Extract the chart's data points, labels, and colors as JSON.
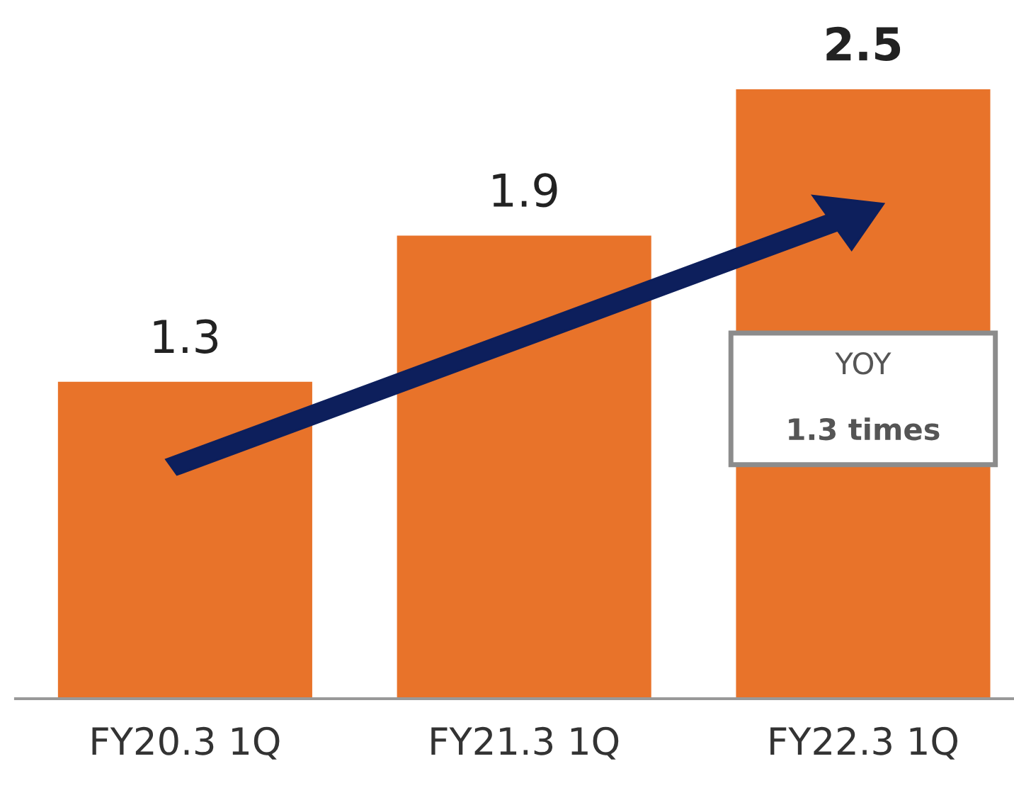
{
  "chart_data": {
    "type": "bar",
    "categories": [
      "FY20.3 1Q",
      "FY21.3 1Q",
      "FY22.3 1Q"
    ],
    "values": [
      1.3,
      1.9,
      2.5
    ],
    "color": "#e8732a",
    "data_labels": true,
    "annotations": [
      "YOY",
      "1.3 times"
    ]
  }
}
